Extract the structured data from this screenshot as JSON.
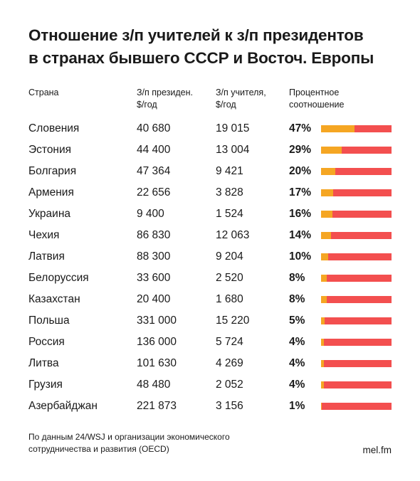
{
  "title_lines": [
    "Отношение з/п учителей к з/п президентов",
    "в странах бывшего СССР и Восточ. Европы"
  ],
  "headers": {
    "country": [
      "Страна"
    ],
    "president": [
      "З/п президен.",
      "$/год"
    ],
    "teacher": [
      "З/п учителя,",
      "$/год"
    ],
    "ratio": [
      "Процентное",
      "соотношение"
    ]
  },
  "colors": {
    "teacher_share": "#f5a623",
    "president": "#f34f4f"
  },
  "chart_data": {
    "type": "table",
    "columns": [
      "Страна",
      "З/п президен. $/год",
      "З/п учителя, $/год",
      "Процентное соотношение"
    ],
    "rows": [
      {
        "country": "Словения",
        "president": "40 680",
        "teacher": "19 015",
        "pct": 47,
        "pct_label": "47%"
      },
      {
        "country": "Эстония",
        "president": "44 400",
        "teacher": "13 004",
        "pct": 29,
        "pct_label": "29%"
      },
      {
        "country": "Болгария",
        "president": "47 364",
        "teacher": "9 421",
        "pct": 20,
        "pct_label": "20%"
      },
      {
        "country": "Армения",
        "president": "22 656",
        "teacher": "3 828",
        "pct": 17,
        "pct_label": "17%"
      },
      {
        "country": "Украина",
        "president": "9 400",
        "teacher": "1 524",
        "pct": 16,
        "pct_label": "16%"
      },
      {
        "country": "Чехия",
        "president": "86 830",
        "teacher": "12 063",
        "pct": 14,
        "pct_label": "14%"
      },
      {
        "country": "Латвия",
        "president": "88 300",
        "teacher": "9 204",
        "pct": 10,
        "pct_label": "10%"
      },
      {
        "country": "Белоруссия",
        "president": "33 600",
        "teacher": "2 520",
        "pct": 8,
        "pct_label": "8%"
      },
      {
        "country": "Казахстан",
        "president": "20 400",
        "teacher": "1 680",
        "pct": 8,
        "pct_label": "8%"
      },
      {
        "country": "Польша",
        "president": "331 000",
        "teacher": "15 220",
        "pct": 5,
        "pct_label": "5%"
      },
      {
        "country": "Россия",
        "president": "136 000",
        "teacher": "5 724",
        "pct": 4,
        "pct_label": "4%"
      },
      {
        "country": "Литва",
        "president": "101 630",
        "teacher": "4 269",
        "pct": 4,
        "pct_label": "4%"
      },
      {
        "country": "Грузия",
        "president": "48 480",
        "teacher": "2 052",
        "pct": 4,
        "pct_label": "4%"
      },
      {
        "country": "Азербайджан",
        "president": "221 873",
        "teacher": "3 156",
        "pct": 1,
        "pct_label": "1%"
      }
    ]
  },
  "source_lines": [
    "По данным 24/WSJ и организации экономического",
    "сотрудничества и развития (OECD)"
  ],
  "brand": "mel.fm"
}
